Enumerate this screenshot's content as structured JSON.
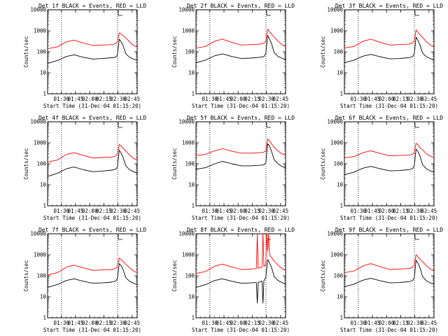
{
  "chart_data": [
    {
      "type": "line",
      "title": "Det 1f BLACK = Events, RED = LLD",
      "xlabel": "Start Time (31-Dec-04 01:15:20)",
      "ylabel": "Counts/sec",
      "yscale": "log",
      "ylim": [
        1,
        10000
      ],
      "y_ticks": [
        "1",
        "10",
        "100",
        "1000",
        "10000"
      ],
      "x_ticks": [
        "01:30",
        "01:45",
        "02:00",
        "02:15",
        "02:30",
        "02:45"
      ],
      "xlim_minutes": [
        0,
        95
      ],
      "vlines_minutes": [
        14.7,
        74.2
      ],
      "grid": false,
      "legend": "title",
      "series": [
        {
          "name": "Events",
          "color": "#000000",
          "x": [
            0,
            10,
            20,
            28,
            38,
            48,
            58,
            68,
            72,
            74,
            76,
            78,
            80,
            83,
            87,
            91,
            95
          ],
          "y": [
            28,
            38,
            60,
            72,
            55,
            45,
            48,
            52,
            55,
            70,
            400,
            300,
            200,
            80,
            55,
            45,
            40
          ]
        },
        {
          "name": "LLD",
          "color": "#ff0000",
          "x": [
            0,
            10,
            20,
            28,
            38,
            48,
            58,
            68,
            72,
            74,
            76,
            78,
            80,
            83,
            87,
            91,
            95
          ],
          "y": [
            140,
            170,
            300,
            360,
            260,
            200,
            210,
            220,
            240,
            300,
            800,
            700,
            600,
            450,
            300,
            200,
            170
          ]
        }
      ]
    },
    {
      "type": "line",
      "title": "Det 2f BLACK = Events, RED = LLD",
      "xlabel": "Start Time (31-Dec-04 01:15:20)",
      "ylabel": "Counts/sec",
      "yscale": "log",
      "ylim": [
        1,
        10000
      ],
      "y_ticks": [
        "1",
        "10",
        "100",
        "1000",
        "10000"
      ],
      "x_ticks": [
        "01:30",
        "01:45",
        "02:00",
        "02:15",
        "02:30",
        "02:45"
      ],
      "xlim_minutes": [
        0,
        95
      ],
      "vlines_minutes": [
        14.7,
        74.2
      ],
      "grid": false,
      "legend": "title",
      "series": [
        {
          "name": "Events",
          "color": "#000000",
          "x": [
            0,
            10,
            20,
            28,
            38,
            48,
            58,
            68,
            72,
            74,
            76,
            78,
            80,
            83,
            87,
            91,
            95
          ],
          "y": [
            30,
            40,
            65,
            80,
            60,
            48,
            50,
            55,
            60,
            80,
            600,
            400,
            250,
            90,
            60,
            50,
            42
          ]
        },
        {
          "name": "LLD",
          "color": "#ff0000",
          "x": [
            0,
            10,
            20,
            28,
            38,
            48,
            58,
            68,
            72,
            74,
            76,
            78,
            80,
            83,
            87,
            91,
            95
          ],
          "y": [
            150,
            180,
            320,
            400,
            280,
            210,
            220,
            230,
            260,
            320,
            1200,
            900,
            700,
            500,
            320,
            220,
            180
          ]
        }
      ]
    },
    {
      "type": "line",
      "title": "Det 3f BLACK = Events, RED = LLD",
      "xlabel": "Start Time (31-Dec-04 01:15:20)",
      "ylabel": "Counts/sec",
      "yscale": "log",
      "ylim": [
        1,
        10000
      ],
      "y_ticks": [
        "1",
        "10",
        "100",
        "1000",
        "10000"
      ],
      "x_ticks": [
        "01:30",
        "01:45",
        "02:00",
        "02:15",
        "02:30",
        "02:45"
      ],
      "xlim_minutes": [
        0,
        95
      ],
      "vlines_minutes": [
        14.7,
        74.2
      ],
      "grid": false,
      "legend": "title",
      "series": [
        {
          "name": "Events",
          "color": "#000000",
          "x": [
            0,
            10,
            20,
            28,
            38,
            48,
            58,
            68,
            72,
            74,
            76,
            78,
            80,
            83,
            87,
            91,
            95
          ],
          "y": [
            30,
            40,
            62,
            75,
            58,
            46,
            48,
            52,
            58,
            75,
            500,
            350,
            220,
            85,
            58,
            48,
            40
          ]
        },
        {
          "name": "LLD",
          "color": "#ff0000",
          "x": [
            0,
            10,
            20,
            28,
            38,
            48,
            58,
            68,
            72,
            74,
            76,
            78,
            80,
            83,
            87,
            91,
            95
          ],
          "y": [
            150,
            180,
            320,
            400,
            280,
            210,
            220,
            230,
            260,
            320,
            1100,
            850,
            650,
            480,
            300,
            210,
            170
          ]
        }
      ]
    },
    {
      "type": "line",
      "title": "Det 4f BLACK = Events, RED = LLD",
      "xlabel": "Start Time (31-Dec-04 01:15:20)",
      "ylabel": "Counts/sec",
      "yscale": "log",
      "ylim": [
        1,
        10000
      ],
      "y_ticks": [
        "1",
        "10",
        "100",
        "1000",
        "10000"
      ],
      "x_ticks": [
        "01:30",
        "01:45",
        "02:00",
        "02:15",
        "02:30",
        "02:45"
      ],
      "xlim_minutes": [
        0,
        95
      ],
      "vlines_minutes": [
        14.7,
        74.2
      ],
      "grid": false,
      "legend": "title",
      "series": [
        {
          "name": "Events",
          "color": "#000000",
          "x": [
            0,
            10,
            20,
            28,
            38,
            48,
            58,
            68,
            72,
            74,
            76,
            78,
            80,
            83,
            87,
            91,
            95
          ],
          "y": [
            25,
            35,
            58,
            70,
            52,
            42,
            45,
            50,
            55,
            70,
            450,
            320,
            200,
            80,
            52,
            42,
            36
          ]
        },
        {
          "name": "LLD",
          "color": "#ff0000",
          "x": [
            0,
            10,
            20,
            28,
            38,
            48,
            58,
            68,
            72,
            74,
            76,
            78,
            80,
            83,
            87,
            91,
            95
          ],
          "y": [
            120,
            150,
            280,
            340,
            250,
            190,
            200,
            210,
            230,
            290,
            850,
            700,
            550,
            400,
            260,
            180,
            150
          ]
        }
      ]
    },
    {
      "type": "line",
      "title": "Det 5f BLACK = Events, RED = LLD",
      "xlabel": "Start Time (31-Dec-04 01:15:20)",
      "ylabel": "Counts/sec",
      "yscale": "log",
      "ylim": [
        1,
        10000
      ],
      "y_ticks": [
        "1",
        "10",
        "100",
        "1000",
        "10000"
      ],
      "x_ticks": [
        "01:30",
        "01:45",
        "02:00",
        "02:15",
        "02:30",
        "02:45"
      ],
      "xlim_minutes": [
        0,
        95
      ],
      "vlines_minutes": [
        14.7,
        74.2
      ],
      "grid": false,
      "legend": "title",
      "series": [
        {
          "name": "Events",
          "color": "#000000",
          "x": [
            0,
            10,
            20,
            28,
            38,
            48,
            58,
            68,
            72,
            74,
            76,
            78,
            80,
            83,
            87,
            91,
            95
          ],
          "y": [
            55,
            65,
            100,
            130,
            100,
            80,
            80,
            85,
            90,
            110,
            900,
            700,
            400,
            150,
            100,
            75,
            65
          ]
        },
        {
          "name": "LLD",
          "color": "#ff0000",
          "x": [
            0,
            10,
            20,
            28,
            38,
            48,
            58,
            68,
            72,
            74,
            76,
            78,
            80,
            83,
            87,
            91,
            95
          ],
          "y": [
            250,
            280,
            420,
            520,
            400,
            320,
            320,
            340,
            360,
            420,
            1500,
            1200,
            900,
            600,
            400,
            300,
            260
          ]
        }
      ]
    },
    {
      "type": "line",
      "title": "Det 6f BLACK = Events, RED = LLD",
      "xlabel": "Start Time (31-Dec-04 01:15:20)",
      "ylabel": "Counts/sec",
      "yscale": "log",
      "ylim": [
        1,
        10000
      ],
      "y_ticks": [
        "1",
        "10",
        "100",
        "1000",
        "10000"
      ],
      "x_ticks": [
        "01:30",
        "01:45",
        "02:00",
        "02:15",
        "02:30",
        "02:45"
      ],
      "xlim_minutes": [
        0,
        95
      ],
      "vlines_minutes": [
        14.7,
        74.2
      ],
      "grid": false,
      "legend": "title",
      "series": [
        {
          "name": "Events",
          "color": "#000000",
          "x": [
            0,
            10,
            20,
            28,
            38,
            48,
            58,
            68,
            72,
            74,
            76,
            78,
            80,
            83,
            87,
            91,
            95
          ],
          "y": [
            30,
            40,
            62,
            75,
            58,
            46,
            48,
            52,
            58,
            75,
            500,
            380,
            240,
            90,
            58,
            46,
            40
          ]
        },
        {
          "name": "LLD",
          "color": "#ff0000",
          "x": [
            0,
            10,
            20,
            28,
            38,
            48,
            58,
            68,
            72,
            74,
            76,
            78,
            80,
            83,
            87,
            91,
            95
          ],
          "y": [
            190,
            220,
            340,
            420,
            310,
            240,
            250,
            260,
            280,
            340,
            950,
            800,
            600,
            450,
            300,
            230,
            200
          ]
        }
      ]
    },
    {
      "type": "line",
      "title": "Det 7f BLACK = Events, RED = LLD",
      "xlabel": "Start Time (31-Dec-04 01:15:20)",
      "ylabel": "Counts/sec",
      "yscale": "log",
      "ylim": [
        1,
        10000
      ],
      "y_ticks": [
        "1",
        "10",
        "100",
        "1000",
        "10000"
      ],
      "x_ticks": [
        "01:30",
        "01:45",
        "02:00",
        "02:15",
        "02:30",
        "02:45"
      ],
      "xlim_minutes": [
        0,
        95
      ],
      "vlines_minutes": [
        14.7,
        74.2
      ],
      "grid": false,
      "legend": "title",
      "series": [
        {
          "name": "Events",
          "color": "#000000",
          "x": [
            0,
            10,
            20,
            28,
            38,
            48,
            58,
            68,
            72,
            74,
            76,
            78,
            80,
            83,
            87,
            91,
            95
          ],
          "y": [
            28,
            38,
            60,
            72,
            55,
            44,
            46,
            50,
            56,
            72,
            380,
            300,
            200,
            80,
            55,
            45,
            38
          ]
        },
        {
          "name": "LLD",
          "color": "#ff0000",
          "x": [
            0,
            10,
            20,
            28,
            38,
            48,
            58,
            68,
            72,
            74,
            76,
            78,
            80,
            83,
            87,
            91,
            95
          ],
          "y": [
            110,
            140,
            260,
            320,
            240,
            180,
            190,
            200,
            220,
            280,
            700,
            600,
            480,
            350,
            240,
            170,
            140
          ]
        }
      ]
    },
    {
      "type": "line",
      "title": "Det 8f BLACK = Events, RED = LLD",
      "xlabel": "Start Time (31-Dec-04 01:15:20)",
      "ylabel": "Counts/sec",
      "yscale": "log",
      "ylim": [
        1,
        10000
      ],
      "y_ticks": [
        "1",
        "10",
        "100",
        "1000",
        "10000"
      ],
      "x_ticks": [
        "01:30",
        "01:45",
        "02:00",
        "02:15",
        "02:30",
        "02:45"
      ],
      "xlim_minutes": [
        0,
        95
      ],
      "vlines_minutes": [
        14.7,
        74.2
      ],
      "grid": false,
      "legend": "title",
      "series": [
        {
          "name": "Events",
          "color": "#000000",
          "x": [
            0,
            10,
            20,
            28,
            38,
            48,
            58,
            64,
            65,
            66,
            68,
            70,
            71,
            72,
            74,
            76,
            78,
            80,
            83,
            87,
            91,
            95
          ],
          "y": [
            28,
            38,
            60,
            72,
            55,
            44,
            46,
            48,
            5,
            48,
            52,
            56,
            5,
            60,
            80,
            600,
            400,
            260,
            90,
            60,
            48,
            40
          ]
        },
        {
          "name": "LLD",
          "color": "#ff0000",
          "x": [
            0,
            10,
            20,
            28,
            38,
            48,
            58,
            64,
            65,
            66,
            68,
            70,
            71,
            72,
            74,
            75,
            76,
            77,
            78,
            80,
            83,
            87,
            91,
            95
          ],
          "y": [
            130,
            160,
            290,
            360,
            260,
            200,
            210,
            220,
            10000,
            230,
            240,
            260,
            10000,
            280,
            350,
            10000,
            1500,
            10000,
            1000,
            750,
            500,
            320,
            220,
            180
          ]
        }
      ]
    },
    {
      "type": "line",
      "title": "Det 9f BLACK = Events, RED = LLD",
      "xlabel": "Start Time (31-Dec-04 01:15:20)",
      "ylabel": "Counts/sec",
      "yscale": "log",
      "ylim": [
        1,
        10000
      ],
      "y_ticks": [
        "1",
        "10",
        "100",
        "1000",
        "10000"
      ],
      "x_ticks": [
        "01:30",
        "01:45",
        "02:00",
        "02:15",
        "02:30",
        "02:45"
      ],
      "xlim_minutes": [
        0,
        95
      ],
      "vlines_minutes": [
        14.7,
        74.2
      ],
      "grid": false,
      "legend": "title",
      "series": [
        {
          "name": "Events",
          "color": "#000000",
          "x": [
            0,
            10,
            20,
            28,
            38,
            48,
            58,
            68,
            72,
            74,
            76,
            78,
            80,
            83,
            87,
            91,
            95
          ],
          "y": [
            30,
            40,
            62,
            76,
            58,
            46,
            48,
            52,
            58,
            75,
            550,
            400,
            250,
            90,
            58,
            46,
            40
          ]
        },
        {
          "name": "LLD",
          "color": "#ff0000",
          "x": [
            0,
            10,
            20,
            28,
            38,
            48,
            58,
            68,
            72,
            74,
            76,
            78,
            80,
            83,
            87,
            91,
            95
          ],
          "y": [
            140,
            170,
            300,
            380,
            270,
            200,
            210,
            220,
            250,
            310,
            1000,
            800,
            620,
            460,
            300,
            210,
            170
          ]
        }
      ]
    }
  ]
}
